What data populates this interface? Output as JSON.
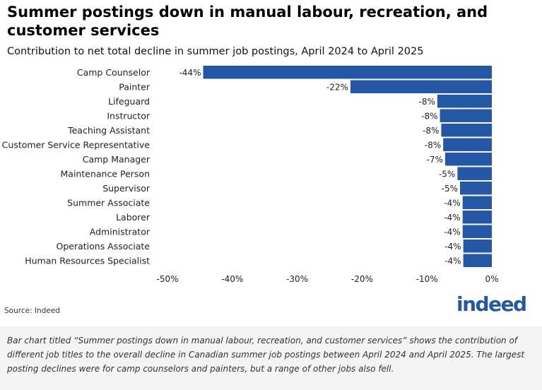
{
  "header": {
    "title": "Summer postings down in manual labour, recreation, and customer services",
    "subtitle": "Contribution to net total decline in summer job postings, April 2024 to April 2025"
  },
  "footer": {
    "source": "Source: Indeed",
    "logo_text": "indeed",
    "caption": "Bar chart titled “Summer postings down in manual labour, recreation, and customer services” shows the contribution of different job titles to the overall decline in Canadian summer job postings between April 2024 and April 2025. The largest posting declines were for camp counselors and painters, but a range of other jobs also fell."
  },
  "colors": {
    "bar": "#2557a7",
    "logo": "#2557a7"
  },
  "chart_data": {
    "type": "bar",
    "orientation": "horizontal",
    "title": "Summer postings down in manual labour, recreation, and customer services",
    "subtitle": "Contribution to net total decline in summer job postings, April 2024 to April 2025",
    "categories": [
      "Camp Counselor",
      "Painter",
      "Lifeguard",
      "Instructor",
      "Teaching Assistant",
      "Customer Service Representative",
      "Camp Manager",
      "Maintenance Person",
      "Supervisor",
      "Summer Associate",
      "Laborer",
      "Administrator",
      "Operations Associate",
      "Human Resources Specialist"
    ],
    "values": [
      -44.5,
      -21.8,
      -8.4,
      -8.0,
      -7.8,
      -7.5,
      -7.2,
      -5.3,
      -4.9,
      -4.5,
      -4.5,
      -4.5,
      -4.4,
      -4.4
    ],
    "data_labels": [
      "-44%",
      "-22%",
      "-8%",
      "-8%",
      "-8%",
      "-8%",
      "-7%",
      "-5%",
      "-5%",
      "-4%",
      "-4%",
      "-4%",
      "-4%",
      "-4%"
    ],
    "xlim": [
      -50,
      0
    ],
    "xticks": [
      -50,
      -40,
      -30,
      -20,
      -10,
      0
    ],
    "xtick_labels": [
      "-50%",
      "-40%",
      "-30%",
      "-20%",
      "-10%",
      "0%"
    ],
    "grid": false,
    "legend": "none"
  }
}
